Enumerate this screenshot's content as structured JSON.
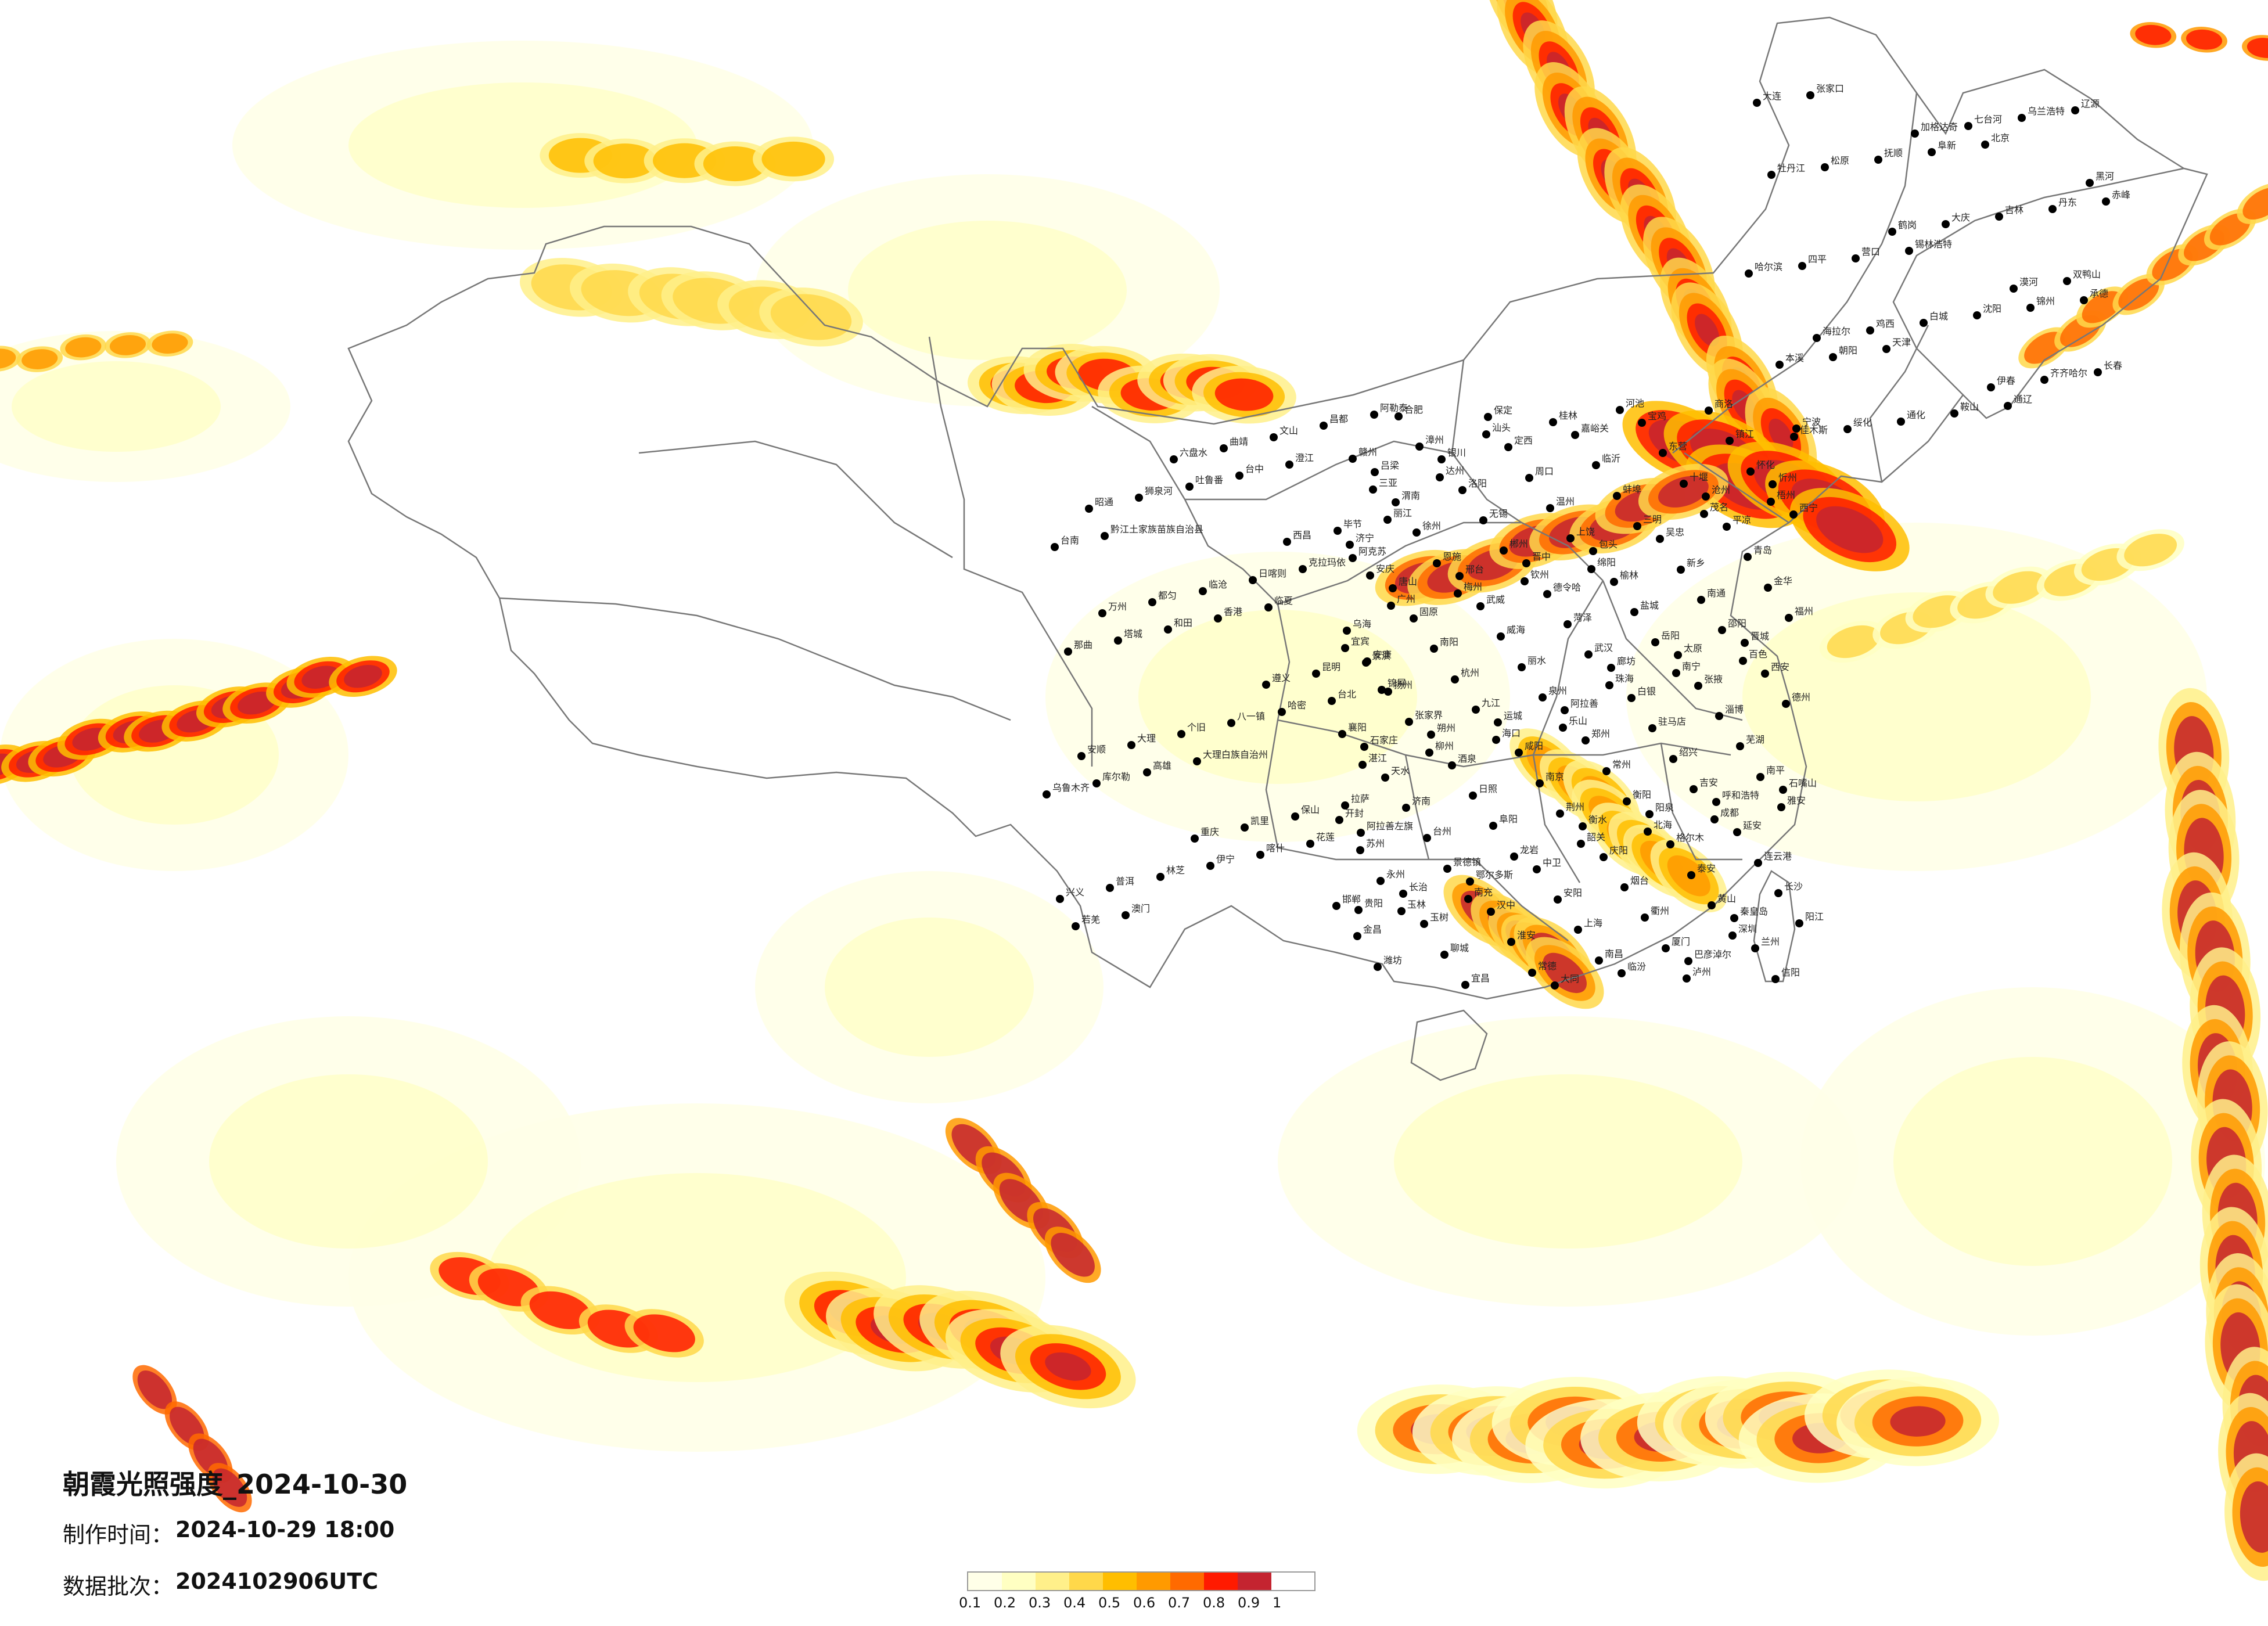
{
  "map": {
    "title": "朝霞光照强度_2024-10-30",
    "made_time_label": "制作时间：",
    "made_time_value": "2024-10-29 18:00",
    "batch_label": "数据批次：",
    "batch_value": "2024102906UTC",
    "colors": {
      "c01": "#ffffe8",
      "c02": "#ffffc2",
      "c03": "#fff08a",
      "c04": "#ffd84a",
      "c05": "#ffbe00",
      "c06": "#ff9a00",
      "c07": "#ff6a00",
      "c08": "#ff1a00",
      "c09": "#c42430",
      "border": "#777777",
      "dot": "#000000"
    },
    "legend": {
      "ticks": [
        "0.1",
        "0.2",
        "0.3",
        "0.4",
        "0.5",
        "0.6",
        "0.7",
        "0.8",
        "0.9",
        "1"
      ],
      "colors": [
        "#ffffe8",
        "#ffffc2",
        "#fff08a",
        "#ffd84a",
        "#ffbe00",
        "#ff9a00",
        "#ff6a00",
        "#ff1a00",
        "#c42430"
      ]
    },
    "cities": [
      "漠河",
      "加格达奇",
      "海拉尔",
      "黑河",
      "伊春",
      "鹤岗",
      "佳木斯",
      "双鸭山",
      "七台河",
      "鸡西",
      "牡丹江",
      "齐齐哈尔",
      "大庆",
      "绥化",
      "哈尔滨",
      "乌兰浩特",
      "白城",
      "松原",
      "长春",
      "吉林",
      "通化",
      "四平",
      "辽源",
      "沈阳",
      "抚顺",
      "本溪",
      "丹东",
      "鞍山",
      "营口",
      "大连",
      "锦州",
      "阜新",
      "朝阳",
      "赤峰",
      "通辽",
      "锡林浩特",
      "张家口",
      "承德",
      "北京",
      "天津",
      "唐山",
      "秦皇岛",
      "廊坊",
      "保定",
      "石家庄",
      "沧州",
      "衡水",
      "邢台",
      "邯郸",
      "太原",
      "大同",
      "朔州",
      "忻州",
      "阳泉",
      "晋中",
      "长治",
      "晋城",
      "临汾",
      "运城",
      "吕梁",
      "呼和浩特",
      "包头",
      "鄂尔多斯",
      "乌海",
      "巴彦淖尔",
      "阿拉善",
      "银川",
      "石嘴山",
      "吴忠",
      "中卫",
      "固原",
      "兰州",
      "白银",
      "定西",
      "天水",
      "平凉",
      "庆阳",
      "武威",
      "金昌",
      "张掖",
      "嘉峪关",
      "酒泉",
      "西宁",
      "格尔木",
      "德令哈",
      "玉树",
      "西安",
      "宝鸡",
      "咸阳",
      "渭南",
      "延安",
      "榆林",
      "汉中",
      "安康",
      "商洛",
      "郑州",
      "洛阳",
      "开封",
      "新乡",
      "安阳",
      "南阳",
      "信阳",
      "驻马店",
      "周口",
      "济南",
      "青岛",
      "烟台",
      "威海",
      "潍坊",
      "淄博",
      "临沂",
      "日照",
      "济宁",
      "泰安",
      "菏泽",
      "聊城",
      "德州",
      "东营",
      "南京",
      "徐州",
      "连云港",
      "盐城",
      "淮安",
      "扬州",
      "镇江",
      "常州",
      "无锡",
      "苏州",
      "南通",
      "上海",
      "杭州",
      "宁波",
      "绍兴",
      "温州",
      "台州",
      "金华",
      "衢州",
      "丽水",
      "合肥",
      "芜湖",
      "蚌埠",
      "阜阳",
      "安庆",
      "黄山",
      "武汉",
      "宜昌",
      "襄阳",
      "十堰",
      "荆州",
      "恩施",
      "长沙",
      "岳阳",
      "常德",
      "张家界",
      "怀化",
      "衡阳",
      "郴州",
      "永州",
      "邵阳",
      "南昌",
      "九江",
      "赣州",
      "吉安",
      "上饶",
      "景德镇",
      "福州",
      "厦门",
      "泉州",
      "漳州",
      "南平",
      "三明",
      "龙岩",
      "广州",
      "深圳",
      "珠海",
      "汕头",
      "湛江",
      "茂名",
      "韶关",
      "梅州",
      "阳江",
      "南宁",
      "桂林",
      "柳州",
      "梧州",
      "北海",
      "钦州",
      "玉林",
      "百色",
      "河池",
      "海口",
      "三亚",
      "成都",
      "绵阳",
      "南充",
      "宜宾",
      "泸州",
      "乐山",
      "达州",
      "雅安",
      "西昌",
      "重庆",
      "万州",
      "贵阳",
      "遵义",
      "六盘水",
      "安顺",
      "毕节",
      "凯里",
      "都匀",
      "兴义",
      "昆明",
      "曲靖",
      "大理",
      "丽江",
      "保山",
      "临沧",
      "普洱",
      "景洪",
      "文山",
      "个旧",
      "昭通",
      "拉萨",
      "日喀则",
      "林芝",
      "那曲",
      "昌都",
      "八一镇",
      "狮泉河",
      "乌鲁木齐",
      "克拉玛依",
      "伊宁",
      "塔城",
      "阿勒泰",
      "哈密",
      "吐鲁番",
      "库尔勒",
      "阿克苏",
      "喀什",
      "和田",
      "若羌",
      "台北",
      "台中",
      "高雄",
      "台南",
      "花莲",
      "香港",
      "澳门",
      "锦屏",
      "澄江",
      "大理白族自治州",
      "黔江土家族苗族自治县",
      "阿拉善左旗",
      "临夏"
    ]
  }
}
